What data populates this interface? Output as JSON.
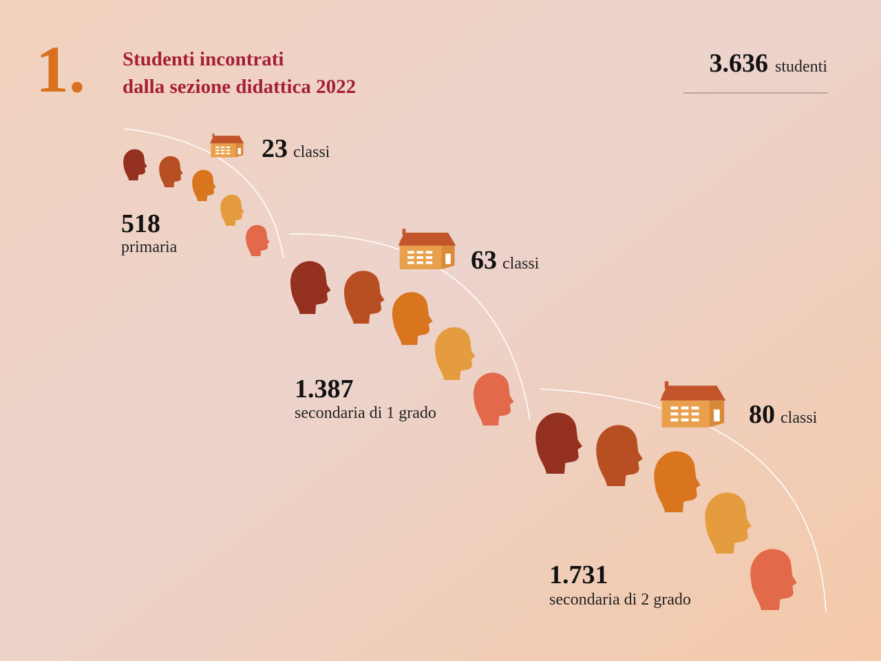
{
  "header": {
    "number": "1.",
    "title_lines": [
      "Studenti incontrati",
      "dalla sezione didattica 2022"
    ]
  },
  "total": {
    "value": "3.636",
    "unit": "studenti"
  },
  "groups": [
    {
      "count": "518",
      "label": "primaria",
      "classes": "23",
      "classes_unit": "classi"
    },
    {
      "count": "1.387",
      "label": "secondaria di 1 grado",
      "classes": "63",
      "classes_unit": "classi"
    },
    {
      "count": "1.731",
      "label": "secondaria di 2 grado",
      "classes": "80",
      "classes_unit": "classi"
    }
  ]
}
